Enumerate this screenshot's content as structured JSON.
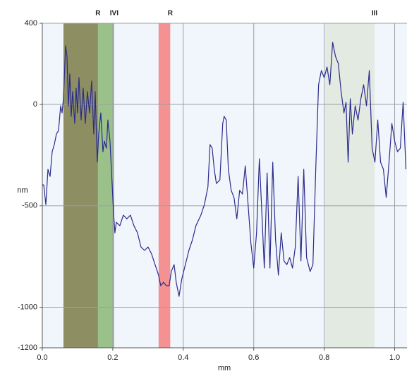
{
  "chart_data": {
    "type": "line",
    "x_label": "mm",
    "y_label": "nm",
    "xlim": [
      0,
      1.035
    ],
    "ylim": [
      -1200,
      400
    ],
    "xticks": [
      {
        "value": 0,
        "label": "0.0"
      },
      {
        "value": 0.2,
        "label": "0.2"
      },
      {
        "value": 0.4,
        "label": "0.4"
      },
      {
        "value": 0.6,
        "label": "0.6"
      },
      {
        "value": 0.8,
        "label": "0.8"
      },
      {
        "value": 1.0,
        "label": "1.0"
      }
    ],
    "yticks": [
      400,
      0,
      -500,
      -1000,
      -1200
    ],
    "grid": true,
    "regions": [
      {
        "label": "R",
        "label_color": "#f4b0b0",
        "color": "#7b7b47",
        "x": [
          0.06,
          0.158
        ]
      },
      {
        "label": "IVI",
        "label_color": "#2e7d32",
        "color": "#8cb775",
        "x": [
          0.158,
          0.204
        ]
      },
      {
        "label": "R",
        "label_color": "#e02020",
        "color": "#f48080",
        "x": [
          0.33,
          0.363
        ]
      },
      {
        "label": "III",
        "label_color": "#c8d8b0",
        "color": "#e1e8dd",
        "x": [
          0.803,
          0.943
        ]
      }
    ],
    "series": [
      {
        "color": "#2b2b8c",
        "x": [
          0,
          0.004,
          0.01,
          0.016,
          0.022,
          0.028,
          0.034,
          0.04,
          0.046,
          0.052,
          0.056,
          0.06,
          0.066,
          0.07,
          0.074,
          0.078,
          0.082,
          0.086,
          0.092,
          0.096,
          0.1,
          0.104,
          0.11,
          0.116,
          0.122,
          0.128,
          0.134,
          0.14,
          0.146,
          0.15,
          0.156,
          0.16,
          0.166,
          0.172,
          0.176,
          0.182,
          0.186,
          0.192,
          0.196,
          0.202,
          0.206,
          0.21,
          0.22,
          0.23,
          0.24,
          0.25,
          0.26,
          0.27,
          0.28,
          0.29,
          0.3,
          0.31,
          0.32,
          0.33,
          0.336,
          0.344,
          0.352,
          0.36,
          0.366,
          0.374,
          0.38,
          0.388,
          0.396,
          0.406,
          0.416,
          0.426,
          0.436,
          0.45,
          0.46,
          0.47,
          0.476,
          0.482,
          0.488,
          0.494,
          0.504,
          0.512,
          0.516,
          0.522,
          0.528,
          0.536,
          0.544,
          0.552,
          0.56,
          0.568,
          0.576,
          0.584,
          0.592,
          0.6,
          0.608,
          0.616,
          0.622,
          0.63,
          0.638,
          0.646,
          0.654,
          0.662,
          0.67,
          0.678,
          0.686,
          0.694,
          0.702,
          0.71,
          0.718,
          0.726,
          0.734,
          0.742,
          0.75,
          0.76,
          0.768,
          0.776,
          0.784,
          0.792,
          0.8,
          0.808,
          0.816,
          0.824,
          0.832,
          0.84,
          0.848,
          0.856,
          0.862,
          0.868,
          0.874,
          0.88,
          0.888,
          0.896,
          0.904,
          0.912,
          0.92,
          0.928,
          0.936,
          0.944,
          0.952,
          0.96,
          0.968,
          0.976,
          0.984,
          0.992,
          1.0,
          1.008,
          1.016,
          1.024,
          1.032
        ],
        "values": [
          -397,
          -397,
          -494,
          -320,
          -355,
          -233,
          -198,
          -146,
          -129,
          -7,
          -42,
          28,
          289,
          237,
          -7,
          150,
          -59,
          63,
          -94,
          80,
          -42,
          132,
          -77,
          80,
          -94,
          63,
          -42,
          115,
          -146,
          63,
          -285,
          -146,
          -42,
          -233,
          -181,
          -216,
          -77,
          -181,
          -320,
          -529,
          -633,
          -581,
          -598,
          -546,
          -564,
          -546,
          -598,
          -633,
          -703,
          -720,
          -703,
          -737,
          -790,
          -842,
          -894,
          -877,
          -894,
          -894,
          -824,
          -790,
          -877,
          -946,
          -859,
          -790,
          -720,
          -668,
          -598,
          -546,
          -494,
          -407,
          -198,
          -216,
          -320,
          -390,
          -372,
          -94,
          -59,
          -77,
          -320,
          -424,
          -459,
          -564,
          -424,
          -442,
          -303,
          -494,
          -685,
          -807,
          -633,
          -268,
          -494,
          -807,
          -338,
          -807,
          -285,
          -668,
          -842,
          -633,
          -772,
          -790,
          -755,
          -807,
          -703,
          -355,
          -772,
          -320,
          -755,
          -824,
          -790,
          -320,
          97,
          167,
          132,
          184,
          97,
          306,
          237,
          202,
          63,
          -42,
          10,
          -285,
          28,
          -146,
          -7,
          -77,
          28,
          97,
          -7,
          167,
          -216,
          -285,
          -77,
          -285,
          -320,
          -459,
          -285,
          -94,
          -181,
          -233,
          -216,
          10,
          -320
        ]
      }
    ]
  }
}
